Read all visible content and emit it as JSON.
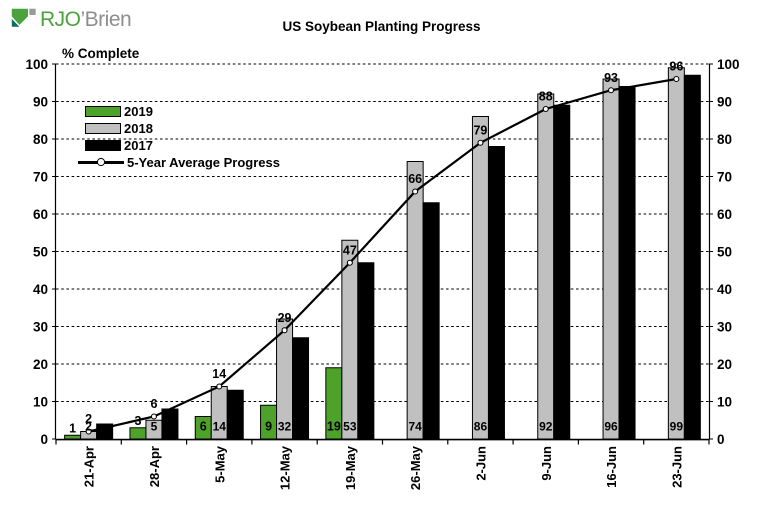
{
  "logo": {
    "text_primary": "RJO",
    "text_secondary": "’Brien"
  },
  "title": "US Soybean Planting Progress",
  "axis_note": "% Complete",
  "legend": [
    {
      "label": "2019",
      "type": "bar",
      "color": "#4DA32A"
    },
    {
      "label": "2018",
      "type": "bar",
      "color": "#C0C0C0"
    },
    {
      "label": "2017",
      "type": "bar",
      "color": "#000000"
    },
    {
      "label": "5-Year Average Progress",
      "type": "line",
      "color": "#000000"
    }
  ],
  "chart_data": {
    "type": "bar",
    "title": "US Soybean Planting Progress",
    "ylabel": "% Complete",
    "ylim": [
      0,
      100
    ],
    "yticks": [
      0,
      10,
      20,
      30,
      40,
      50,
      60,
      70,
      80,
      90,
      100
    ],
    "grid": true,
    "gridstyle": "dashed",
    "legend_position": "upper-left-inside",
    "categories": [
      "21-Apr",
      "28-Apr",
      "5-May",
      "12-May",
      "19-May",
      "26-May",
      "2-Jun",
      "9-Jun",
      "16-Jun",
      "23-Jun"
    ],
    "series": [
      {
        "name": "2019",
        "type": "bar",
        "color": "#4DA32A",
        "labels_shown": true,
        "values": [
          1,
          3,
          6,
          9,
          19,
          null,
          null,
          null,
          null,
          null
        ]
      },
      {
        "name": "2018",
        "type": "bar",
        "color": "#C0C0C0",
        "labels_shown": true,
        "values": [
          2,
          5,
          14,
          32,
          53,
          74,
          86,
          92,
          96,
          99
        ]
      },
      {
        "name": "2017",
        "type": "bar",
        "color": "#000000",
        "labels_shown": false,
        "values": [
          4,
          8,
          13,
          27,
          47,
          63,
          78,
          89,
          94,
          97
        ]
      },
      {
        "name": "5-Year Average Progress",
        "type": "line",
        "color": "#000000",
        "marker": "circle-white",
        "labels_shown": true,
        "values": [
          2,
          6,
          14,
          29,
          47,
          66,
          79,
          88,
          93,
          96
        ]
      }
    ]
  }
}
